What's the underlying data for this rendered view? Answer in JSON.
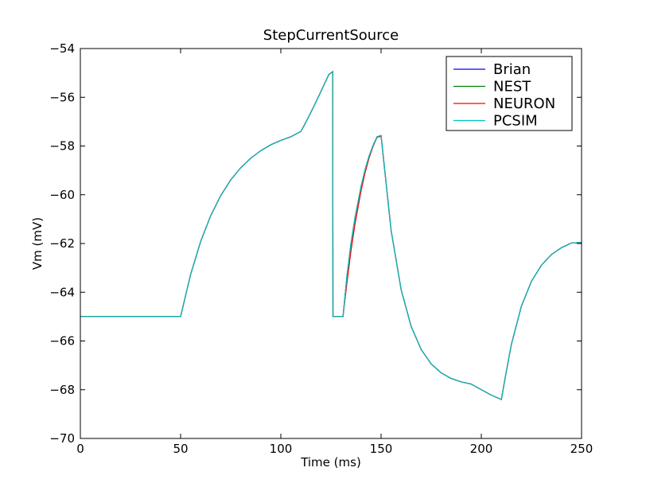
{
  "chart_data": {
    "type": "line",
    "title": "StepCurrentSource",
    "xlabel": "Time (ms)",
    "ylabel": "Vm (mV)",
    "xlim": [
      0,
      250
    ],
    "ylim": [
      -70,
      -54
    ],
    "xticks": [
      0,
      50,
      100,
      150,
      200,
      250
    ],
    "yticks": [
      -70,
      -68,
      -66,
      -64,
      -62,
      -60,
      -58,
      -56,
      -54
    ],
    "xtick_labels": [
      "0",
      "50",
      "100",
      "150",
      "200",
      "250"
    ],
    "ytick_labels": [
      "−70",
      "−68",
      "−66",
      "−64",
      "−62",
      "−60",
      "−58",
      "−56",
      "−54"
    ],
    "grid": false,
    "legend_position": "top-right",
    "series": [
      {
        "name": "Brian",
        "color": "#0000ff",
        "x": [
          0,
          50,
          55,
          60,
          65,
          70,
          75,
          80,
          85,
          90,
          95,
          100,
          105,
          110,
          112,
          114,
          116,
          118,
          120,
          122,
          124,
          125.9,
          126,
          130,
          131,
          133,
          135,
          137,
          140,
          142,
          144,
          146,
          148,
          150,
          155,
          160,
          165,
          170,
          175,
          180,
          185,
          190,
          195,
          200,
          205,
          210,
          212,
          215,
          220,
          225,
          230,
          235,
          240,
          245,
          250
        ],
        "y": [
          -65,
          -65,
          -63.27,
          -61.92,
          -60.86,
          -60.04,
          -59.39,
          -58.89,
          -58.5,
          -58.19,
          -57.95,
          -57.77,
          -57.62,
          -57.4,
          -57.1,
          -56.78,
          -56.45,
          -56.11,
          -55.76,
          -55.41,
          -55.06,
          -54.95,
          -65,
          -65,
          -65,
          -63.33,
          -62.0,
          -60.94,
          -59.67,
          -58.98,
          -58.42,
          -57.98,
          -57.62,
          -57.57,
          -61.46,
          -63.89,
          -65.4,
          -66.35,
          -66.94,
          -67.31,
          -67.54,
          -67.68,
          -67.77,
          -68.0,
          -68.22,
          -68.4,
          -67.46,
          -66.14,
          -64.57,
          -63.55,
          -62.89,
          -62.45,
          -62.17,
          -61.98,
          -61.96
        ]
      },
      {
        "name": "NEST",
        "color": "#008000",
        "x": [
          0,
          50,
          55,
          60,
          65,
          70,
          75,
          80,
          85,
          90,
          95,
          100,
          105,
          110,
          112,
          114,
          116,
          118,
          120,
          122,
          124,
          125.9,
          126,
          130,
          131,
          133,
          135,
          137,
          140,
          142,
          144,
          146,
          148,
          150,
          155,
          160,
          165,
          170,
          175,
          180,
          185,
          190,
          195,
          200,
          205,
          210,
          212,
          215,
          220,
          225,
          230,
          235,
          240,
          245,
          250
        ],
        "y": [
          -65,
          -65,
          -63.27,
          -61.92,
          -60.86,
          -60.04,
          -59.39,
          -58.89,
          -58.5,
          -58.19,
          -57.95,
          -57.77,
          -57.62,
          -57.4,
          -57.1,
          -56.78,
          -56.45,
          -56.11,
          -55.76,
          -55.41,
          -55.06,
          -54.95,
          -65,
          -65,
          -65,
          -63.33,
          -62.0,
          -60.94,
          -59.67,
          -58.98,
          -58.42,
          -57.98,
          -57.62,
          -57.57,
          -61.46,
          -63.89,
          -65.4,
          -66.35,
          -66.94,
          -67.31,
          -67.54,
          -67.68,
          -67.77,
          -68.0,
          -68.22,
          -68.4,
          -67.46,
          -66.14,
          -64.57,
          -63.55,
          -62.89,
          -62.45,
          -62.17,
          -61.98,
          -61.96
        ]
      },
      {
        "name": "NEURON",
        "color": "#ff0000",
        "x": [
          0,
          50,
          55,
          60,
          65,
          70,
          75,
          80,
          85,
          90,
          95,
          100,
          105,
          110,
          112,
          114,
          116,
          118,
          120,
          122,
          124,
          125.9,
          126,
          130,
          131,
          133,
          135,
          137,
          140,
          142,
          144,
          146,
          148,
          150,
          155,
          160,
          165,
          170,
          175,
          180,
          185,
          190,
          195,
          200,
          205,
          210,
          212,
          215,
          220,
          225,
          230,
          235,
          240,
          245,
          250
        ],
        "y": [
          -65,
          -65,
          -63.27,
          -61.92,
          -60.86,
          -60.04,
          -59.39,
          -58.89,
          -58.5,
          -58.19,
          -57.95,
          -57.77,
          -57.62,
          -57.4,
          -57.1,
          -56.78,
          -56.45,
          -56.11,
          -55.76,
          -55.41,
          -55.06,
          -54.95,
          -65,
          -65,
          -65,
          -63.6,
          -62.3,
          -61.2,
          -59.85,
          -59.1,
          -58.5,
          -58.02,
          -57.64,
          -57.6,
          -61.46,
          -63.89,
          -65.4,
          -66.35,
          -66.94,
          -67.31,
          -67.54,
          -67.68,
          -67.77,
          -68.0,
          -68.22,
          -68.4,
          -67.46,
          -66.14,
          -64.57,
          -63.55,
          -62.89,
          -62.45,
          -62.17,
          -61.98,
          -61.96
        ]
      },
      {
        "name": "PCSIM",
        "color": "#00bfbf",
        "x": [
          0,
          50,
          55,
          60,
          65,
          70,
          75,
          80,
          85,
          90,
          95,
          100,
          105,
          110,
          112,
          114,
          116,
          118,
          120,
          122,
          124,
          125.9,
          126,
          130,
          131,
          133,
          135,
          137,
          140,
          142,
          144,
          146,
          148,
          150,
          155,
          160,
          165,
          170,
          175,
          180,
          185,
          190,
          195,
          200,
          205,
          210,
          212,
          215,
          220,
          225,
          230,
          235,
          240,
          245,
          250
        ],
        "y": [
          -65,
          -65,
          -63.27,
          -61.92,
          -60.86,
          -60.04,
          -59.39,
          -58.89,
          -58.5,
          -58.19,
          -57.95,
          -57.77,
          -57.62,
          -57.4,
          -57.1,
          -56.78,
          -56.45,
          -56.11,
          -55.76,
          -55.41,
          -55.06,
          -54.95,
          -65,
          -65,
          -65,
          -63.33,
          -62.0,
          -60.94,
          -59.67,
          -58.98,
          -58.42,
          -57.98,
          -57.62,
          -57.57,
          -61.46,
          -63.89,
          -65.4,
          -66.35,
          -66.94,
          -67.31,
          -67.54,
          -67.68,
          -67.77,
          -68.0,
          -68.22,
          -68.4,
          -67.46,
          -66.14,
          -64.57,
          -63.55,
          -62.89,
          -62.45,
          -62.17,
          -61.98,
          -61.96
        ]
      }
    ]
  }
}
